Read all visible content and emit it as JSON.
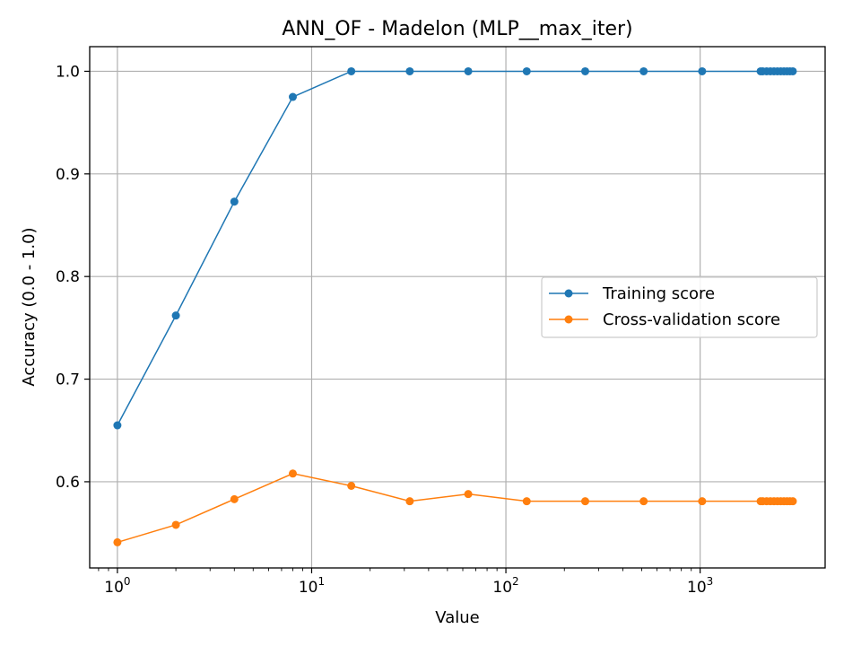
{
  "chart_data": {
    "type": "line",
    "title": "ANN_OF - Madelon (MLP__max_iter)",
    "xlabel": "Value",
    "ylabel": "Accuracy (0.0 - 1.0)",
    "xscale": "log",
    "xlim": [
      0.72,
      4400
    ],
    "ylim": [
      0.516,
      1.024
    ],
    "grid": true,
    "legend_position": "center-right",
    "x_ticks": [
      {
        "value": 1,
        "base": "10",
        "exp": "0"
      },
      {
        "value": 10,
        "base": "10",
        "exp": "1"
      },
      {
        "value": 100,
        "base": "10",
        "exp": "2"
      },
      {
        "value": 1000,
        "base": "10",
        "exp": "3"
      }
    ],
    "y_ticks": [
      {
        "value": 0.6,
        "label": "0.6"
      },
      {
        "value": 0.7,
        "label": "0.7"
      },
      {
        "value": 0.8,
        "label": "0.8"
      },
      {
        "value": 0.9,
        "label": "0.9"
      },
      {
        "value": 1.0,
        "label": "1.0"
      }
    ],
    "x": [
      1,
      2,
      4,
      8,
      16,
      32,
      64,
      128,
      256,
      512,
      1024,
      2048,
      2100,
      2200,
      2300,
      2400,
      2500,
      2600,
      2700,
      2800,
      2900,
      3000
    ],
    "series": [
      {
        "name": "Training score",
        "color": "#1f77b4",
        "values": [
          0.655,
          0.762,
          0.873,
          0.975,
          1.0,
          1.0,
          1.0,
          1.0,
          1.0,
          1.0,
          1.0,
          1.0,
          1.0,
          1.0,
          1.0,
          1.0,
          1.0,
          1.0,
          1.0,
          1.0,
          1.0,
          1.0
        ]
      },
      {
        "name": "Cross-validation score",
        "color": "#ff7f0e",
        "values": [
          0.541,
          0.558,
          0.583,
          0.608,
          0.596,
          0.581,
          0.588,
          0.581,
          0.581,
          0.581,
          0.581,
          0.581,
          0.581,
          0.581,
          0.581,
          0.581,
          0.581,
          0.581,
          0.581,
          0.581,
          0.581,
          0.581
        ]
      }
    ]
  }
}
